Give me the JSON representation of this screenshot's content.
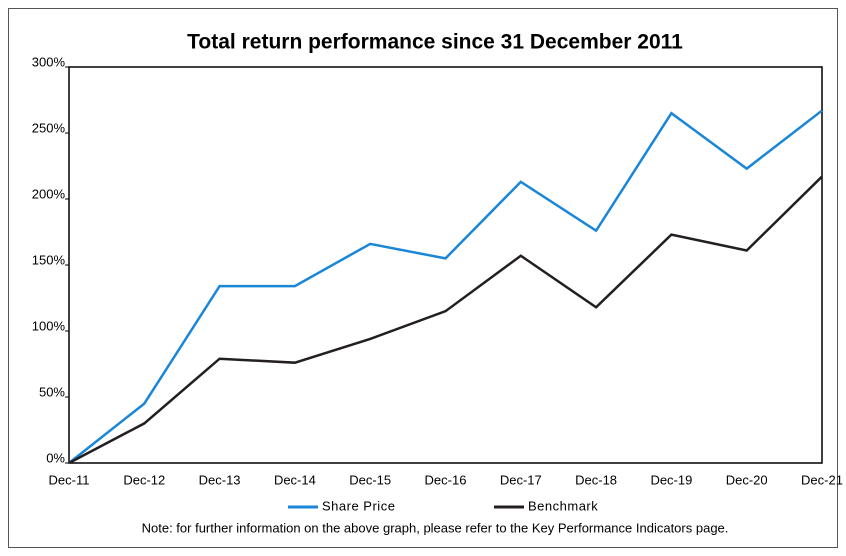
{
  "chart_data": {
    "type": "line",
    "title": "Total return performance since 31 December 2011",
    "categories": [
      "Dec-11",
      "Dec-12",
      "Dec-13",
      "Dec-14",
      "Dec-15",
      "Dec-16",
      "Dec-17",
      "Dec-18",
      "Dec-19",
      "Dec-20",
      "Dec-21"
    ],
    "series": [
      {
        "name": "Share Price",
        "color": "#1a86d8",
        "values": [
          0,
          45,
          134,
          134,
          166,
          155,
          213,
          176,
          265,
          223,
          267
        ]
      },
      {
        "name": "Benchmark",
        "color": "#231f20",
        "values": [
          0,
          30,
          79,
          76,
          94,
          115,
          157,
          118,
          173,
          161,
          217
        ]
      }
    ],
    "ylim": [
      0,
      300
    ],
    "yticks": [
      {
        "value": 0,
        "label": "0%"
      },
      {
        "value": 50,
        "label": "50%"
      },
      {
        "value": 100,
        "label": "100%"
      },
      {
        "value": 150,
        "label": "150%"
      },
      {
        "value": 200,
        "label": "200%"
      },
      {
        "value": 250,
        "label": "250%"
      },
      {
        "value": 300,
        "label": "300%"
      }
    ],
    "grid": false,
    "legend": "bottom",
    "note": "Note: for further information on the above graph, please refer to the Key Performance Indicators page."
  }
}
